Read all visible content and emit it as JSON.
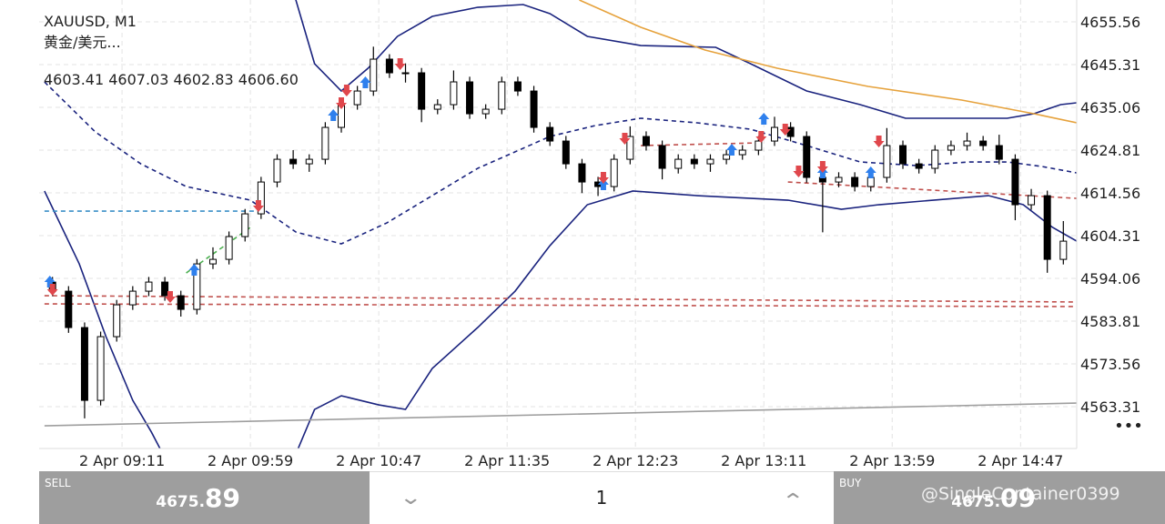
{
  "chart_data": {
    "type": "candlestick",
    "title": "XAUUSD, M1",
    "subtitle": "黄金/美元...",
    "ohlc_readout": "4603.41 4607.03 4602.83 4606.60",
    "up_color": "#ffffff",
    "down_color": "#000000",
    "wick_color": "#000000",
    "grid": true,
    "xlim": [
      520,
      908
    ],
    "ylim": [
      4553.28,
      4660.79
    ],
    "yticks": [
      4655.56,
      4645.31,
      4635.06,
      4624.81,
      4614.56,
      4604.31,
      4594.06,
      4583.81,
      4573.56,
      4563.31
    ],
    "xticks": [
      {
        "value": 551,
        "label": "2 Apr 09:11"
      },
      {
        "value": 599,
        "label": "2 Apr 09:59"
      },
      {
        "value": 647,
        "label": "2 Apr 10:47"
      },
      {
        "value": 695,
        "label": "2 Apr 11:35"
      },
      {
        "value": 743,
        "label": "2 Apr 12:23"
      },
      {
        "value": 791,
        "label": "2 Apr 13:11"
      },
      {
        "value": 839,
        "label": "2 Apr 13:59"
      },
      {
        "value": 887,
        "label": "2 Apr 14:47"
      }
    ],
    "x": [
      525,
      531,
      537,
      543,
      549,
      555,
      561,
      567,
      573,
      579,
      585,
      591,
      597,
      603,
      609,
      615,
      621,
      627,
      633,
      639,
      645,
      651,
      657,
      663,
      669,
      675,
      681,
      687,
      693,
      699,
      705,
      711,
      717,
      723,
      729,
      735,
      741,
      747,
      753,
      759,
      765,
      771,
      777,
      783,
      789,
      795,
      801,
      807,
      813,
      819,
      825,
      831,
      837,
      843,
      849,
      855,
      861,
      867,
      873,
      879,
      885,
      891,
      897,
      903
    ],
    "open": [
      4593.17,
      4590.99,
      4582.27,
      4564.82,
      4580.09,
      4587.72,
      4590.99,
      4593.17,
      4589.9,
      4586.63,
      4597.53,
      4598.62,
      4604.08,
      4609.53,
      4617.16,
      4622.61,
      4621.52,
      4622.61,
      4630.25,
      4635.7,
      4638.97,
      4646.61,
      4643.34,
      4643.34,
      4634.61,
      4635.7,
      4641.16,
      4633.52,
      4634.61,
      4641.16,
      4638.97,
      4630.25,
      4626.98,
      4621.52,
      4617.16,
      4616.07,
      4622.61,
      4628.07,
      4625.89,
      4620.44,
      4622.61,
      4621.52,
      4622.61,
      4623.71,
      4624.8,
      4626.98,
      4630.25,
      4628.07,
      4618.26,
      4617.16,
      4618.26,
      4616.07,
      4618.26,
      4625.89,
      4621.52,
      4620.44,
      4624.8,
      4625.89,
      4626.98,
      4625.89,
      4622.61,
      4611.71,
      4613.89,
      4598.62
    ],
    "high": [
      4594.4,
      4592.2,
      4583.5,
      4581.3,
      4588.9,
      4592.2,
      4594.4,
      4594.4,
      4591.1,
      4598.7,
      4601.5,
      4605.3,
      4610.7,
      4618.4,
      4623.8,
      4624.8,
      4623.8,
      4631.5,
      4636.9,
      4640.2,
      4649.6,
      4647.8,
      4645.6,
      4644.5,
      4637,
      4643.9,
      4642.4,
      4635.8,
      4642.4,
      4642.4,
      4640.2,
      4631.5,
      4628.2,
      4622.7,
      4618.4,
      4623.8,
      4630.5,
      4629.3,
      4627.1,
      4623.8,
      4623.8,
      4623.8,
      4624.9,
      4626,
      4628.2,
      4632.8,
      4631.5,
      4629.3,
      4619.5,
      4619.5,
      4619.5,
      4619.5,
      4630.1,
      4627.1,
      4622.7,
      4626,
      4627.1,
      4629,
      4628.2,
      4628.5,
      4623.8,
      4615.5,
      4615.1,
      4607.8
    ],
    "low": [
      4589.8,
      4581,
      4560.5,
      4563.6,
      4578.9,
      4586.5,
      4589.8,
      4588.7,
      4584.9,
      4585.4,
      4596.3,
      4597.4,
      4602.9,
      4608.3,
      4615.9,
      4620.3,
      4619.6,
      4621.4,
      4629,
      4634.5,
      4637.8,
      4642.1,
      4641,
      4631.5,
      4633.4,
      4634.5,
      4632.3,
      4632.3,
      4633.4,
      4637.8,
      4629,
      4625.8,
      4620.3,
      4614.5,
      4613.8,
      4614.9,
      4621.4,
      4624.7,
      4617.8,
      4619.2,
      4620.3,
      4619.6,
      4621.4,
      4622.5,
      4623.6,
      4625.8,
      4626.9,
      4617,
      4605.1,
      4615.9,
      4614.9,
      4614.9,
      4617,
      4620.3,
      4619.2,
      4619.2,
      4623.6,
      4624.7,
      4624.7,
      4621.4,
      4608,
      4610.5,
      4595.4,
      4597.4
    ],
    "close": [
      4590.99,
      4582.27,
      4564.82,
      4580.09,
      4587.72,
      4590.99,
      4593.17,
      4589.9,
      4586.63,
      4597.53,
      4598.62,
      4604.08,
      4609.53,
      4617.16,
      4622.61,
      4621.52,
      4622.61,
      4630.25,
      4635.7,
      4638.97,
      4646.61,
      4643.34,
      4643.34,
      4634.61,
      4635.7,
      4641.16,
      4633.52,
      4634.61,
      4641.16,
      4638.97,
      4630.25,
      4626.98,
      4621.52,
      4617.16,
      4616.07,
      4622.61,
      4628.07,
      4625.89,
      4620.44,
      4622.61,
      4621.52,
      4622.61,
      4623.71,
      4624.8,
      4626.98,
      4630.25,
      4628.07,
      4618.26,
      4617.16,
      4618.26,
      4616.07,
      4618.26,
      4625.89,
      4621.52,
      4620.44,
      4624.8,
      4625.89,
      4626.98,
      4625.89,
      4622.61,
      4611.71,
      4613.89,
      4598.62,
      4602.98
    ],
    "overlays": [
      {
        "color": "#1a237e",
        "dash": false,
        "x": [
          609,
          616,
          623,
          633,
          643,
          654,
          667,
          684,
          701,
          711,
          725,
          745,
          773,
          786,
          807,
          827,
          844,
          865,
          882,
          892,
          902,
          908
        ],
        "values": [
          4673.88,
          4660.79,
          4645.52,
          4638.98,
          4644.43,
          4652.07,
          4656.86,
          4659.04,
          4659.7,
          4657.52,
          4652.07,
          4649.88,
          4649.45,
          4645.52,
          4638.98,
          4635.71,
          4632.44,
          4632.44,
          4632.44,
          4633.53,
          4635.71,
          4636.15
        ]
      },
      {
        "color": "#1a237e",
        "dash": true,
        "x": [
          522,
          541,
          558,
          575,
          599,
          616,
          633,
          650,
          667,
          684,
          711,
          728,
          745,
          766,
          786,
          807,
          827,
          848,
          868,
          882,
          895,
          908
        ],
        "values": [
          4641.16,
          4629.17,
          4621.52,
          4616.08,
          4612.81,
          4605.17,
          4602.34,
          4607.35,
          4613.9,
          4620.44,
          4628.08,
          4630.69,
          4632.44,
          4631.35,
          4629.82,
          4625.89,
          4621.97,
          4621.1,
          4621.97,
          4621.97,
          4620.88,
          4619.35
        ]
      },
      {
        "color": "#1a237e",
        "dash": false,
        "x": [
          522,
          535,
          545,
          555,
          562,
          570,
          null,
          613,
          623,
          633,
          647,
          657,
          667,
          684,
          698,
          711,
          725,
          742,
          766,
          800,
          820,
          834,
          875,
          888,
          899,
          908
        ],
        "values": [
          4614.99,
          4597.54,
          4580.09,
          4564.83,
          4557.19,
          4547.38,
          null,
          4547.38,
          4562.65,
          4565.92,
          4563.74,
          4562.65,
          4572.46,
          4582.28,
          4591,
          4601.9,
          4611.72,
          4615,
          4613.9,
          4612.81,
          4610.63,
          4611.72,
          4613.9,
          4611.72,
          4606.27,
          4603
        ]
      },
      {
        "color": "#e6a23c",
        "dash": false,
        "x": [
          722,
          745,
          769,
          796,
          830,
          865,
          892,
          908
        ],
        "values": [
          4660.79,
          4654.25,
          4648.79,
          4644.43,
          4640.07,
          4636.8,
          4633.53,
          4631.35
        ]
      },
      {
        "color": "#9e9e9e",
        "dash": false,
        "x": [
          522,
          908
        ],
        "values": [
          4558.72,
          4564.17
        ]
      },
      {
        "color": "#c0504d",
        "dash": true,
        "x": [
          522,
          908
        ],
        "values": [
          4589.91,
          4588.4
        ]
      },
      {
        "color": "#c0504d",
        "dash": true,
        "x": [
          522,
          908
        ],
        "values": [
          4587.94,
          4587.3
        ]
      },
      {
        "color": "#3a8fc7",
        "dash": true,
        "x": [
          522,
          601
        ],
        "values": [
          4610.19,
          4610.19
        ]
      },
      {
        "color": "#4caf50",
        "dash": true,
        "x": [
          575,
          599
        ],
        "values": [
          4595.36,
          4606.27
        ]
      },
      {
        "color": "#c0504d",
        "dash": true,
        "x": [
          745,
          790
        ],
        "values": [
          4625.89,
          4626.55
        ]
      },
      {
        "color": "#c0504d",
        "dash": true,
        "x": [
          800,
          908
        ],
        "values": [
          4617.17,
          4613.24
        ]
      }
    ],
    "signals": [
      {
        "marker": "up",
        "color": "#2f80ed",
        "x": [
          524,
          578,
          630,
          642,
          731,
          779,
          791,
          813,
          831
        ],
        "values": [
          4593.18,
          4596.01,
          4633.09,
          4640.94,
          4616.52,
          4624.8,
          4632.22,
          4619.35,
          4619.35
        ]
      },
      {
        "marker": "down",
        "color": "#e0474c",
        "x": [
          525,
          569,
          602,
          633,
          635,
          655,
          731,
          739,
          790,
          799,
          804,
          813,
          834
        ],
        "values": [
          4591.44,
          4589.69,
          4611.5,
          4636.15,
          4639.2,
          4645.52,
          4618.26,
          4627.64,
          4628.08,
          4629.82,
          4619.79,
          4620.88,
          4626.98
        ]
      }
    ]
  },
  "trade_panel": {
    "sell_label": "SELL",
    "sell_price_small": "4675.",
    "sell_price_big": "89",
    "volume": "1",
    "buy_label": "BUY",
    "buy_price_small": "4675.",
    "buy_price_big": "09",
    "menu": "•••",
    "watermark": "@SingleContainer0399"
  }
}
